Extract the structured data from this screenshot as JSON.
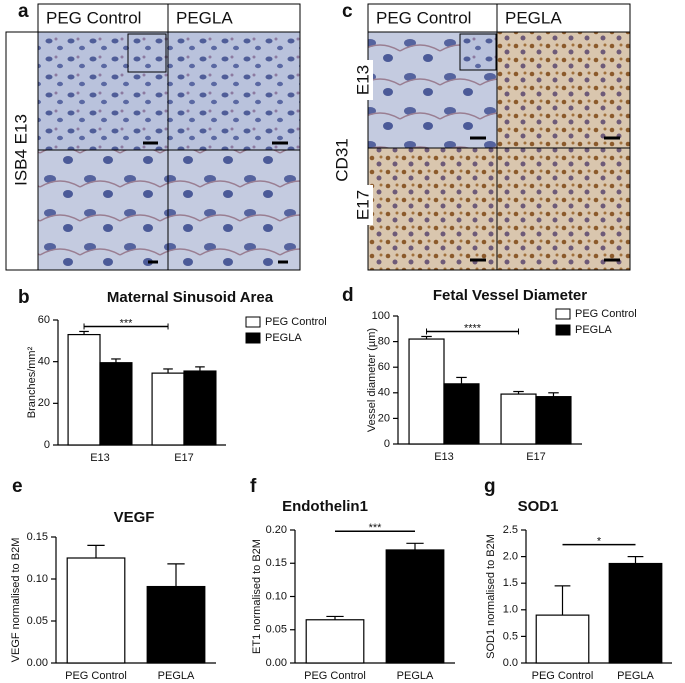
{
  "image_panels": [
    {
      "letter": "a",
      "columns": [
        "PEG Control",
        "PEGLA"
      ],
      "row_label": "ISB4 E13"
    },
    {
      "letter": "c",
      "columns": [
        "PEG Control",
        "PEGLA"
      ],
      "axis_label": "CD31",
      "rows": [
        "E13",
        "E17"
      ]
    }
  ],
  "chart_data": [
    {
      "type": "bar",
      "letter": "b",
      "title": "Maternal Sinusoid Area",
      "y_label": "Branches/mm²",
      "categories": [
        "E13",
        "E17"
      ],
      "series": [
        {
          "name": "PEG Control",
          "color": "#ffffff",
          "values": [
            53,
            34.5
          ],
          "errors": [
            1.5,
            2
          ]
        },
        {
          "name": "PEGLA",
          "color": "#000000",
          "values": [
            39.5,
            35.5
          ],
          "errors": [
            1.8,
            2
          ]
        }
      ],
      "ylim": [
        0,
        60
      ],
      "yticks": [
        0,
        20,
        40,
        60
      ],
      "annotation": "***"
    },
    {
      "type": "bar",
      "letter": "d",
      "title": "Fetal Vessel Diameter",
      "y_label": "Vessel diameter (µm)",
      "categories": [
        "E13",
        "E17"
      ],
      "series": [
        {
          "name": "PEG Control",
          "color": "#ffffff",
          "values": [
            82,
            39
          ],
          "errors": [
            2,
            2
          ]
        },
        {
          "name": "PEGLA",
          "color": "#000000",
          "values": [
            47,
            37
          ],
          "errors": [
            5,
            3
          ]
        }
      ],
      "ylim": [
        0,
        100
      ],
      "yticks": [
        0,
        20,
        40,
        60,
        80,
        100
      ],
      "annotation": "****"
    },
    {
      "type": "bar",
      "letter": "e",
      "title": "VEGF",
      "y_label": "VEGF normalised to B2M",
      "categories": [
        "PEG Control",
        "PEGLA"
      ],
      "values": [
        0.125,
        0.091
      ],
      "errors": [
        0.015,
        0.027
      ],
      "colors": [
        "#ffffff",
        "#000000"
      ],
      "ylim": [
        0,
        0.15
      ],
      "yticks": [
        {
          "value": 0,
          "label": "0.00"
        },
        {
          "value": 0.05,
          "label": "0.05"
        },
        {
          "value": 0.1,
          "label": "0.10"
        },
        {
          "value": 0.15,
          "label": "0.15"
        }
      ]
    },
    {
      "type": "bar",
      "letter": "f",
      "title": "Endothelin1",
      "y_label": "ET1 normalised to B2M",
      "categories": [
        "PEG Control",
        "PEGLA"
      ],
      "values": [
        0.065,
        0.17
      ],
      "errors": [
        0.005,
        0.01
      ],
      "colors": [
        "#ffffff",
        "#000000"
      ],
      "ylim": [
        0,
        0.2
      ],
      "yticks": [
        {
          "value": 0,
          "label": "0.00"
        },
        {
          "value": 0.05,
          "label": "0.05"
        },
        {
          "value": 0.1,
          "label": "0.10"
        },
        {
          "value": 0.15,
          "label": "0.15"
        },
        {
          "value": 0.2,
          "label": "0.20"
        }
      ],
      "annotation": "***"
    },
    {
      "type": "bar",
      "letter": "g",
      "title": "SOD1",
      "y_label": "SOD1 normalised to B2M",
      "categories": [
        "PEG Control",
        "PEGLA"
      ],
      "values": [
        0.9,
        1.87
      ],
      "errors": [
        0.55,
        0.13
      ],
      "colors": [
        "#ffffff",
        "#000000"
      ],
      "ylim": [
        0,
        2.5
      ],
      "yticks": [
        {
          "value": 0,
          "label": "0.0"
        },
        {
          "value": 0.5,
          "label": "0.5"
        },
        {
          "value": 1,
          "label": "1.0"
        },
        {
          "value": 1.5,
          "label": "1.5"
        },
        {
          "value": 2,
          "label": "2.0"
        },
        {
          "value": 2.5,
          "label": "2.5"
        }
      ],
      "annotation": "*"
    }
  ]
}
